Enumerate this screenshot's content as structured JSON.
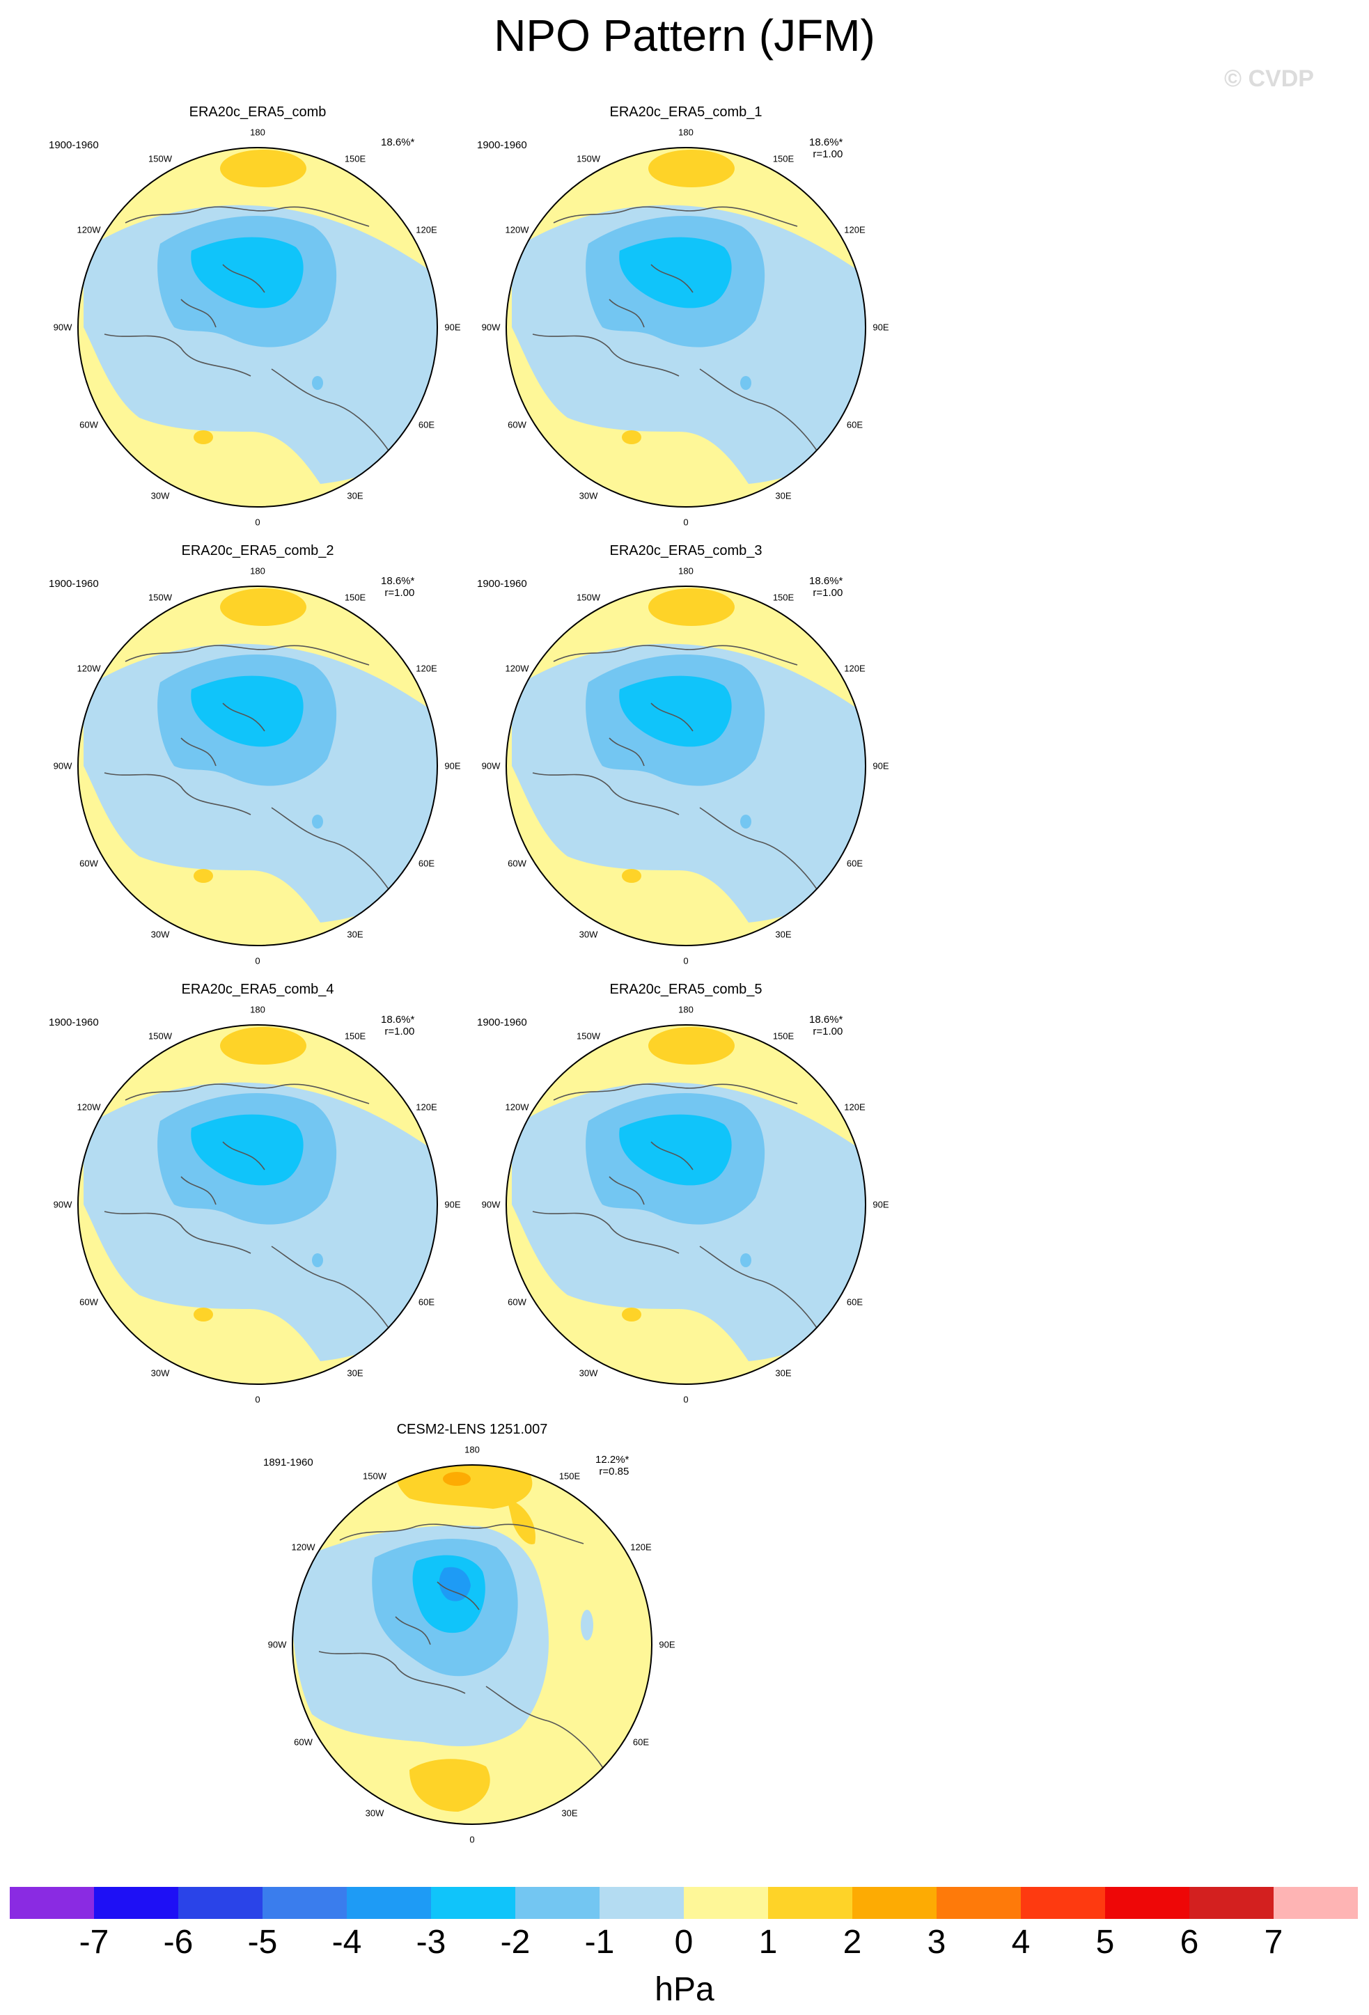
{
  "title": "NPO Pattern (JFM)",
  "watermark": "© CVDP",
  "longitude_labels": [
    "180",
    "150E",
    "120E",
    "90E",
    "60E",
    "30E",
    "0",
    "30W",
    "60W",
    "90W",
    "120W",
    "150W"
  ],
  "panels": [
    {
      "name": "ERA20c_ERA5_comb",
      "years": "1900-1960",
      "pct": "18.6%*",
      "r": ""
    },
    {
      "name": "ERA20c_ERA5_comb_1",
      "years": "1900-1960",
      "pct": "18.6%*",
      "r": "r=1.00"
    },
    {
      "name": "ERA20c_ERA5_comb_2",
      "years": "1900-1960",
      "pct": "18.6%*",
      "r": "r=1.00"
    },
    {
      "name": "ERA20c_ERA5_comb_3",
      "years": "1900-1960",
      "pct": "18.6%*",
      "r": "r=1.00"
    },
    {
      "name": "ERA20c_ERA5_comb_4",
      "years": "1900-1960",
      "pct": "18.6%*",
      "r": "r=1.00"
    },
    {
      "name": "ERA20c_ERA5_comb_5",
      "years": "1900-1960",
      "pct": "18.6%*",
      "r": "r=1.00"
    },
    {
      "name": "CESM2-LENS 1251.007",
      "years": "1891-1960",
      "pct": "12.2%*",
      "r": "r=0.85"
    }
  ],
  "colorbar": {
    "unit": "hPa",
    "ticks": [
      "-7",
      "-6",
      "-5",
      "-4",
      "-3",
      "-2",
      "-1",
      "0",
      "1",
      "2",
      "3",
      "4",
      "5",
      "6",
      "7"
    ],
    "colors": [
      "#8a2be2",
      "#1e10f5",
      "#2a44e8",
      "#3a7ded",
      "#1e9bf5",
      "#10c4fa",
      "#73c6f2",
      "#b4dcf2",
      "#fef798",
      "#fed328",
      "#fdab03",
      "#fe7a0a",
      "#fe3a10",
      "#ee0707",
      "#d3201f",
      "#feb4b4"
    ]
  }
}
